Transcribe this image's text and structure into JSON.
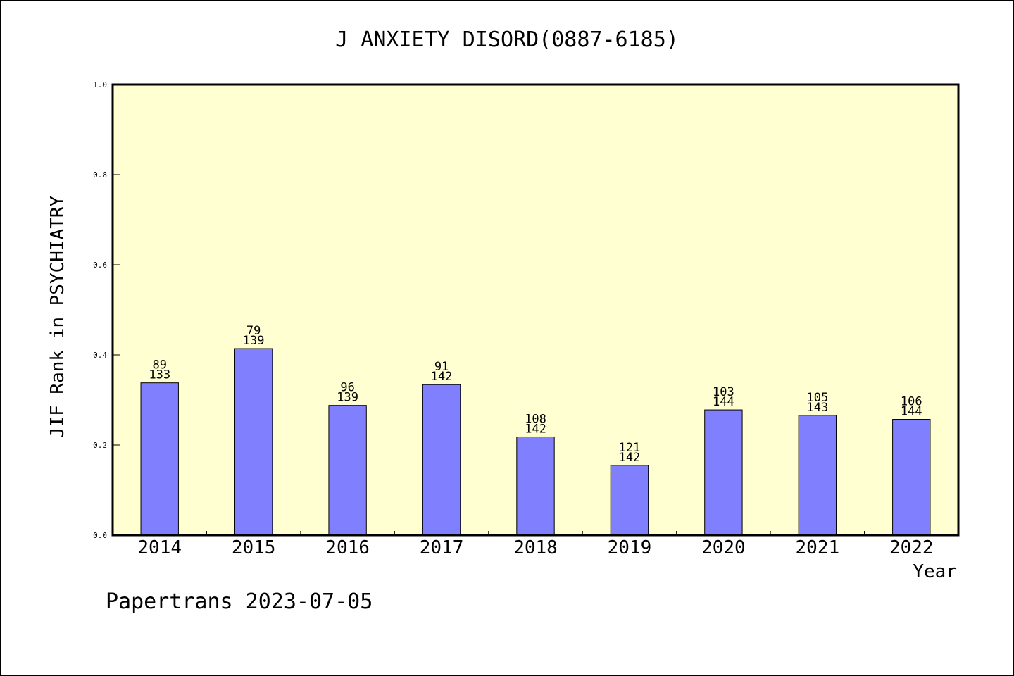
{
  "chart_data": {
    "type": "bar",
    "title": "J ANXIETY DISORD(0887-6185)",
    "xlabel": "Year",
    "ylabel": "JIF Rank in PSYCHIATRY",
    "categories": [
      "2014",
      "2015",
      "2016",
      "2017",
      "2018",
      "2019",
      "2020",
      "2021",
      "2022"
    ],
    "values": [
      0.338,
      0.414,
      0.288,
      0.334,
      0.218,
      0.155,
      0.278,
      0.266,
      0.257
    ],
    "rank": [
      "89",
      "79",
      "96",
      "91",
      "108",
      "121",
      "103",
      "105",
      "106"
    ],
    "total": [
      "133",
      "139",
      "139",
      "142",
      "142",
      "142",
      "144",
      "143",
      "144"
    ],
    "ylim": [
      0,
      1.0
    ],
    "yticks": [
      "0.0",
      "0.2",
      "0.4",
      "0.6",
      "0.8",
      "1.0"
    ],
    "grid": false,
    "colors": {
      "plot_background": "#ffffd2",
      "bar_fill": "#8080ff",
      "bar_stroke": "#000000"
    }
  },
  "footer": {
    "credit": "Papertrans 2023-07-05"
  }
}
